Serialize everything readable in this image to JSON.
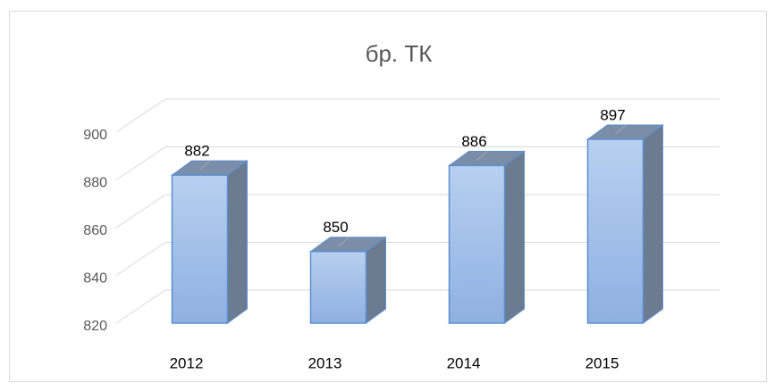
{
  "chart_data": {
    "type": "bar3d",
    "title": "бр. ТК",
    "categories": [
      "2012",
      "2013",
      "2014",
      "2015"
    ],
    "values": [
      882,
      850,
      886,
      897
    ],
    "color": "#9dbbe8",
    "ylim": [
      820,
      900
    ],
    "yticks": [
      820,
      840,
      860,
      880,
      900
    ],
    "grid": true
  }
}
